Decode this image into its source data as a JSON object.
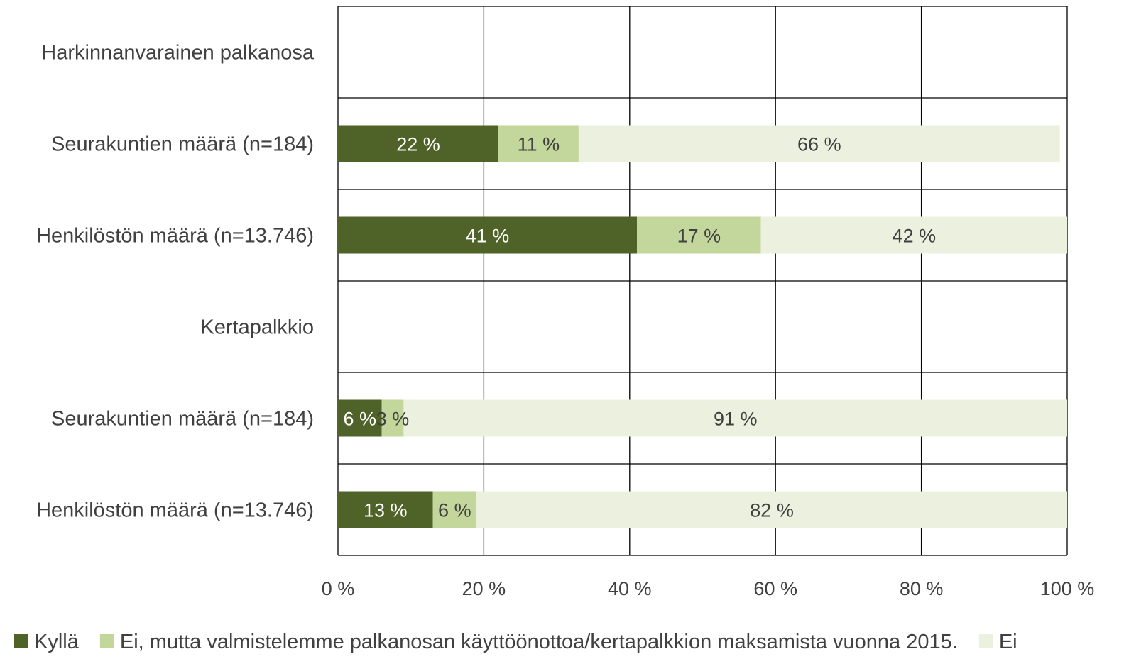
{
  "chart_data": {
    "type": "bar",
    "orientation": "horizontal",
    "stacked": true,
    "categories": [
      "Harkinnanvarainen palkanosa",
      "Seurakuntien määrä (n=184)",
      "Henkilöstön määrä (n=13.746)",
      "Kertapalkkio",
      "Seurakuntien määrä (n=184)",
      "Henkilöstön määrä (n=13.746)"
    ],
    "series": [
      {
        "name": "Kyllä",
        "color": "#4f6228",
        "label_color": "#ffffff",
        "values": [
          null,
          22,
          41,
          null,
          6,
          13
        ]
      },
      {
        "name": "Ei, mutta valmistelemme palkanosan käyttöönottoa/kertapalkkion maksamista vuonna 2015.",
        "color": "#c3d69b",
        "label_color": "#404040",
        "values": [
          null,
          11,
          17,
          null,
          3,
          6
        ]
      },
      {
        "name": "Ei",
        "color": "#ebf1de",
        "label_color": "#404040",
        "values": [
          null,
          66,
          42,
          null,
          91,
          82
        ]
      }
    ],
    "x_ticks": [
      "0 %",
      "20 %",
      "40 %",
      "60 %",
      "80 %",
      "100 %"
    ],
    "xlim": [
      0,
      100
    ],
    "value_suffix": " %",
    "grid": true,
    "legend_position": "bottom"
  }
}
